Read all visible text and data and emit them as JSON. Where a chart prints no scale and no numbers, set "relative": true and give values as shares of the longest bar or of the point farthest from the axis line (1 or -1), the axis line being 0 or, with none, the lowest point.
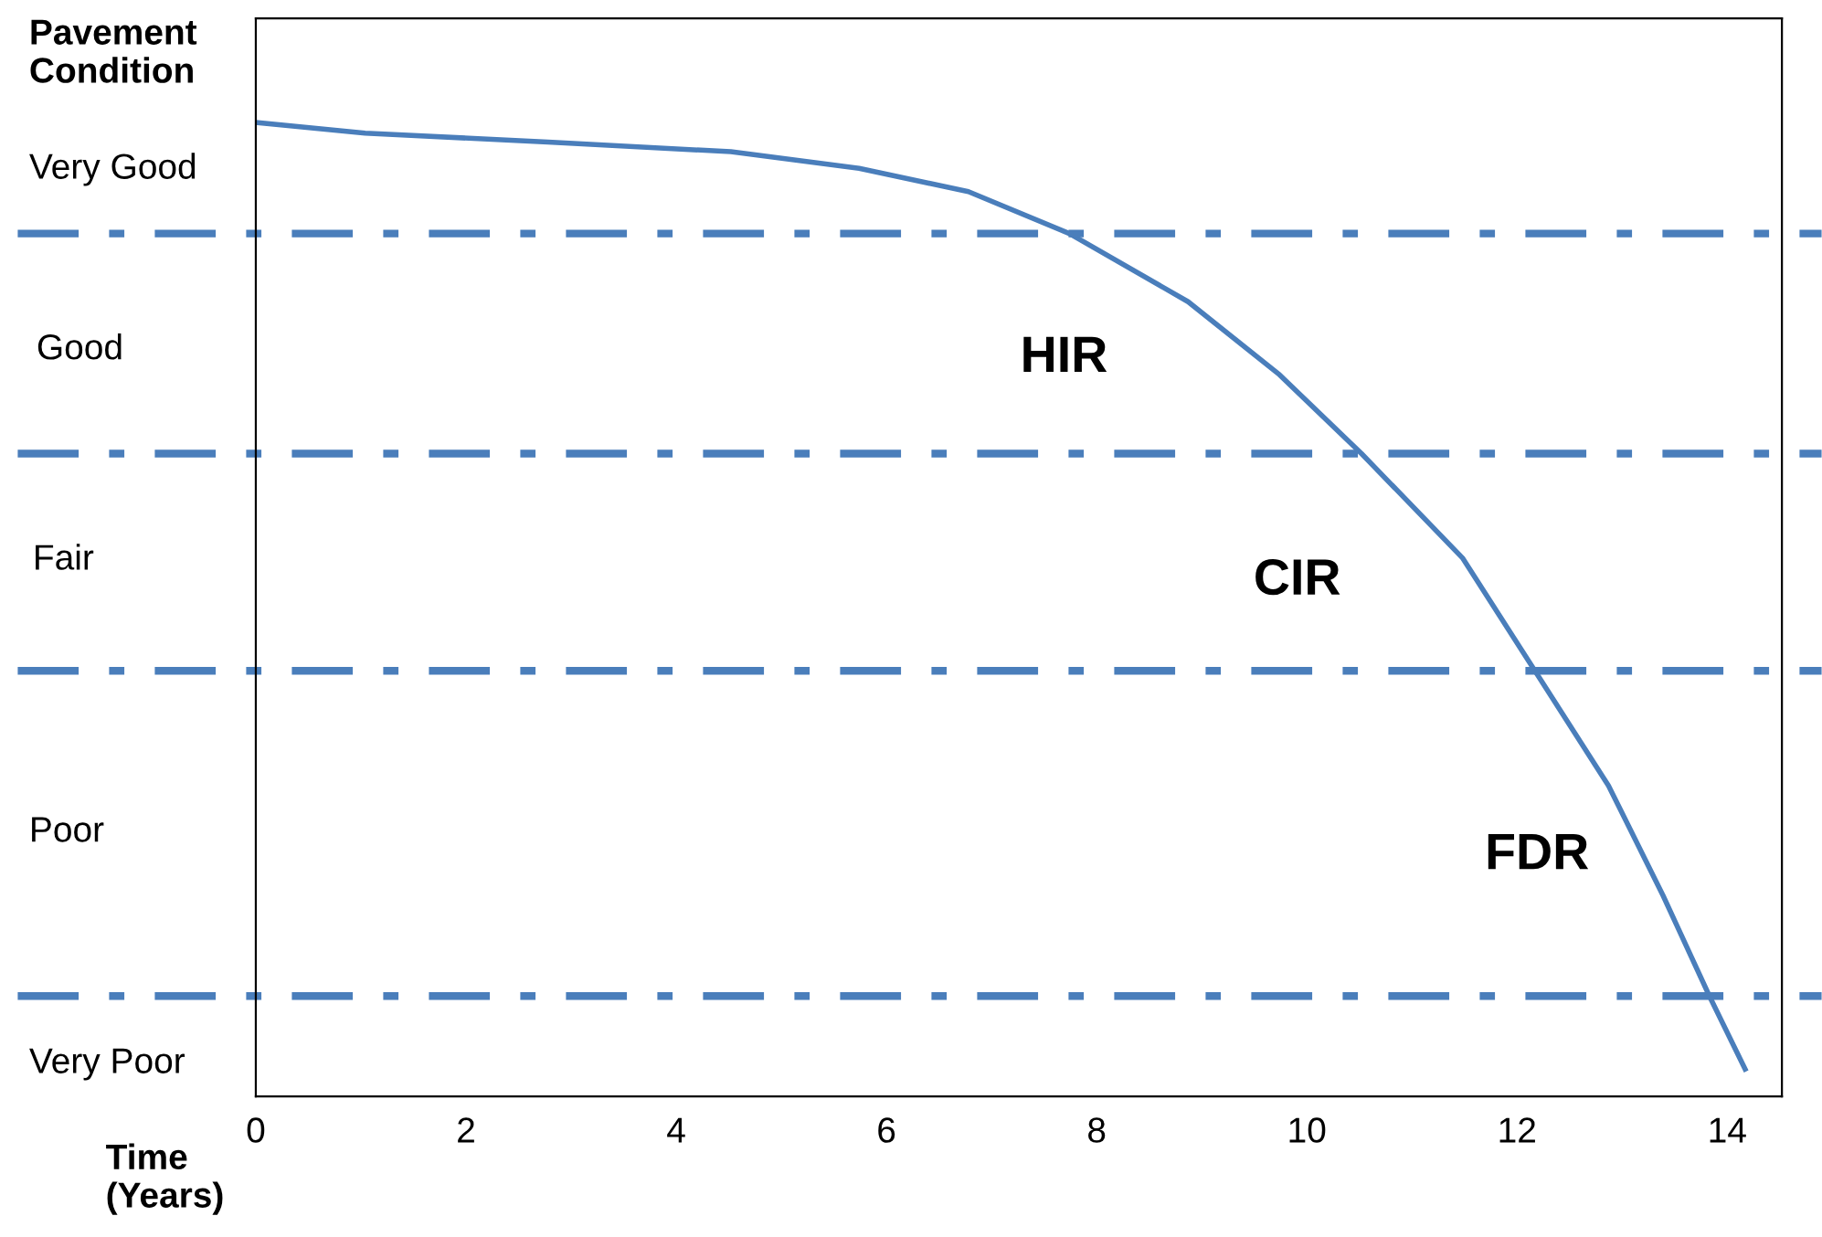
{
  "chart_data": {
    "type": "line",
    "relative": true,
    "xlabel": "Time\n(Years)",
    "ylabel": "Pavement\nCondition",
    "x": [
      0,
      1.04,
      2.78,
      4.52,
      5.74,
      6.78,
      7.74,
      8.87,
      9.74,
      10.52,
      11.48,
      12.17,
      12.87,
      13.39,
      13.83,
      14.17
    ],
    "series": [
      {
        "color": "#4a7ebb",
        "values": [
          1,
          0.989,
          0.98,
          0.97,
          0.953,
          0.929,
          0.886,
          0.816,
          0.741,
          0.66,
          0.553,
          0.437,
          0.319,
          0.206,
          0.103,
          0.028
        ]
      }
    ],
    "xlim": [
      0,
      14.52
    ],
    "xticks": [
      0,
      2,
      4,
      6,
      8,
      10,
      12,
      14
    ],
    "ref_lines": [
      {
        "axis": "y",
        "value": 0.886,
        "color": "#4a7ebb",
        "line_style": "dashdot"
      },
      {
        "axis": "y",
        "value": 0.66,
        "color": "#4a7ebb",
        "line_style": "dashdot"
      },
      {
        "axis": "y",
        "value": 0.437,
        "color": "#4a7ebb",
        "line_style": "dashdot"
      },
      {
        "axis": "y",
        "value": 0.103,
        "color": "#4a7ebb",
        "line_style": "dashdot"
      }
    ],
    "annotations": [
      "Very Good",
      "Good",
      "Fair",
      "Poor",
      "Very Poor",
      "HIR",
      "CIR",
      "FDR"
    ],
    "grid": false,
    "legend": false,
    "marker": "none",
    "line_style": "solid"
  }
}
